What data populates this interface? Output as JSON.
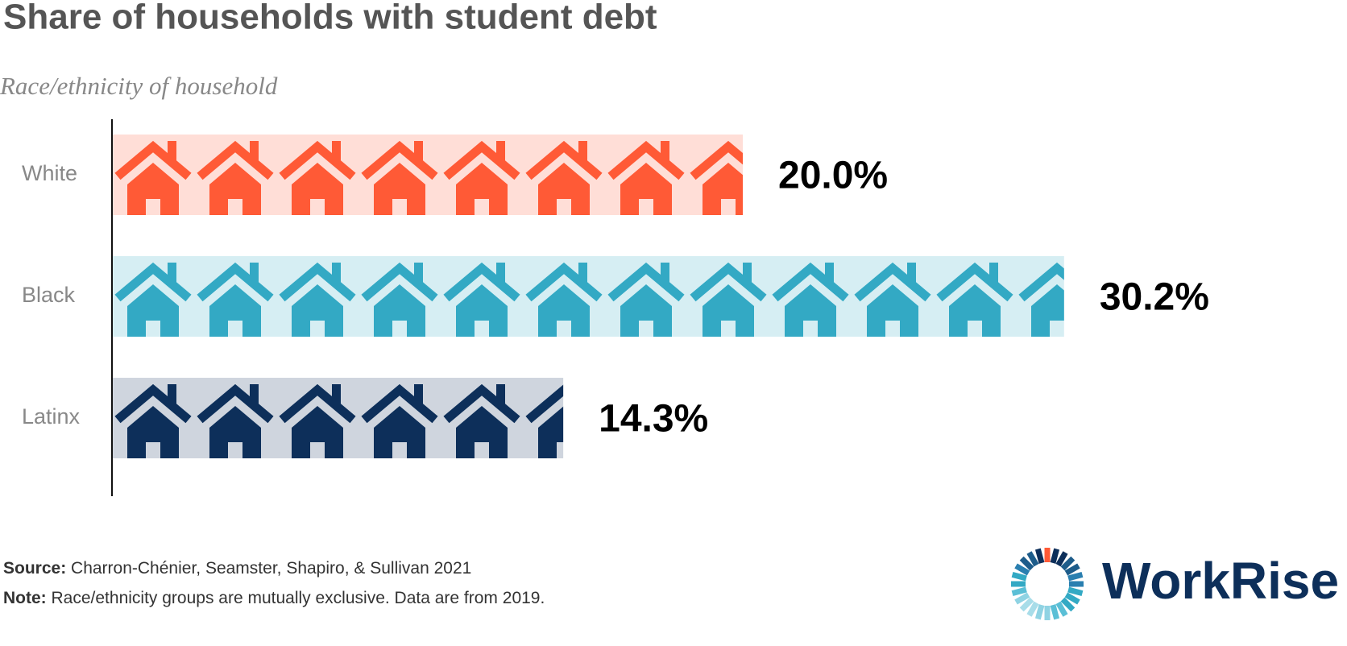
{
  "chart_data": {
    "type": "pictograph-bar",
    "title": "Share of households with student debt",
    "subtitle": "Race/ethnicity of household",
    "categories": [
      "White",
      "Black",
      "Latinx"
    ],
    "values": [
      20.0,
      30.2,
      14.3
    ],
    "value_labels": [
      "20.0%",
      "30.2%",
      "14.3%"
    ],
    "colors": [
      "#ff5a36",
      "#33a9c4",
      "#0d2f5a"
    ],
    "source_label": "Source:",
    "source": "Charron-Chénier, Seamster, Shapiro, & Sullivan 2021",
    "note_label": "Note:",
    "note": "Race/ethnicity groups are mutually exclusive. Data are from 2019.",
    "logo": "WorkRise"
  }
}
